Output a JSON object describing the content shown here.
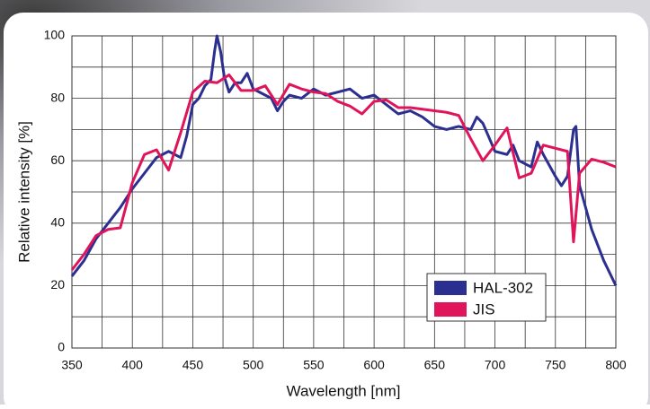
{
  "chart_data": {
    "type": "line",
    "xlabel": "Wavelength [nm]",
    "ylabel": "Relative intensity [%]",
    "xlim": [
      350,
      800
    ],
    "xticks": [
      350,
      400,
      450,
      500,
      550,
      600,
      650,
      700,
      750,
      800
    ],
    "x_minor_ticks": [
      375,
      425,
      475,
      525,
      575,
      625,
      675,
      725,
      775
    ],
    "ylim": [
      0,
      100
    ],
    "yticks": [
      0,
      20,
      40,
      60,
      80,
      100
    ],
    "y_minor_ticks": [
      10,
      30,
      50,
      70,
      90
    ],
    "grid": true,
    "legend": "lower right",
    "series": [
      {
        "name": "HAL-302",
        "color": "#2b2f8f",
        "x": [
          350,
          360,
          370,
          380,
          390,
          400,
          410,
          420,
          430,
          440,
          445,
          450,
          455,
          460,
          465,
          468,
          470,
          473,
          476,
          480,
          485,
          490,
          495,
          500,
          505,
          510,
          515,
          520,
          525,
          530,
          540,
          550,
          560,
          570,
          580,
          590,
          600,
          610,
          620,
          630,
          640,
          650,
          660,
          670,
          680,
          685,
          690,
          700,
          710,
          715,
          720,
          730,
          735,
          740,
          750,
          755,
          760,
          765,
          767,
          770,
          775,
          780,
          790,
          800
        ],
        "values": [
          23,
          28,
          35,
          40,
          45,
          51,
          56,
          61,
          63,
          61,
          68,
          78,
          80,
          84,
          86,
          95,
          100,
          95,
          87,
          82,
          85,
          85,
          88,
          83,
          82,
          81,
          80,
          76,
          79,
          81,
          80,
          83,
          81,
          82,
          83,
          80,
          81,
          78,
          75,
          76,
          74,
          71,
          70,
          71,
          70,
          74,
          72,
          63,
          62,
          65,
          60,
          58,
          66,
          62,
          55,
          52,
          55,
          70,
          71,
          52,
          45,
          38,
          28,
          20
        ]
      },
      {
        "name": "JIS",
        "color": "#e0145a",
        "x": [
          350,
          360,
          370,
          380,
          390,
          400,
          410,
          420,
          430,
          440,
          450,
          460,
          470,
          480,
          490,
          500,
          510,
          520,
          530,
          540,
          550,
          560,
          570,
          580,
          590,
          600,
          610,
          620,
          630,
          640,
          650,
          660,
          670,
          680,
          690,
          700,
          710,
          720,
          730,
          740,
          750,
          760,
          765,
          770,
          780,
          790,
          800
        ],
        "values": [
          25,
          30,
          36,
          38,
          38.5,
          53,
          62,
          63.5,
          57,
          69,
          82,
          85.5,
          85,
          87.5,
          82.5,
          82.5,
          84,
          78,
          84.5,
          83,
          82,
          81.5,
          79,
          77.5,
          75,
          79,
          79.5,
          77,
          77,
          76.5,
          76,
          75.5,
          74.5,
          67,
          60,
          65,
          70.5,
          54.5,
          56,
          65,
          64,
          63,
          34,
          56,
          60.5,
          59.5,
          58
        ]
      }
    ]
  }
}
